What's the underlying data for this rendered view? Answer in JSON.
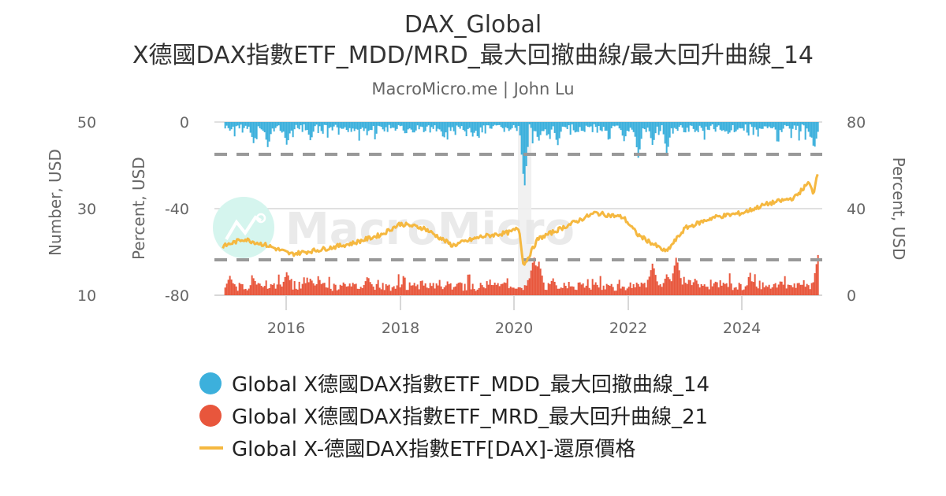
{
  "header": {
    "title_line1": "DAX_Global",
    "title_line2": "X德國DAX指數ETF_MDD/MRD_最大回撤曲線/最大回升曲線_14",
    "subtitle": "MacroMicro.me | John Lu"
  },
  "watermark": {
    "text": "MacroMicro"
  },
  "axes": {
    "left_outer": {
      "title": "Number, USD",
      "ticks": [
        "50",
        "30",
        "10"
      ]
    },
    "left_inner": {
      "title": "Percent, USD",
      "ticks": [
        "0",
        "-40",
        "-80"
      ]
    },
    "right": {
      "title": "Percent, USD",
      "ticks": [
        "80",
        "40",
        "0"
      ]
    },
    "x": {
      "ticks": [
        "2016",
        "2018",
        "2020",
        "2022",
        "2024"
      ]
    }
  },
  "legend": [
    {
      "label": "Global X德國DAX指數ETF_MDD_最大回撤曲線_14",
      "color": "#3cb0dc",
      "marker": "dot"
    },
    {
      "label": "Global X德國DAX指數ETF_MRD_最大回升曲線_21",
      "color": "#e8563c",
      "marker": "dot"
    },
    {
      "label": "Global X-德國DAX指數ETF[DAX]-還原價格",
      "color": "#f5b840",
      "marker": "line"
    }
  ],
  "colors": {
    "mdd": "#3cb0dc",
    "mrd": "#e8563c",
    "price": "#f5b840",
    "dashed": "#999999",
    "grid": "#e0e0e0",
    "shade": "#eeeeee"
  },
  "chart_data": {
    "type": "bar+line",
    "title": "DAX_Global — X德國DAX指數ETF_MDD/MRD_最大回撤曲線/最大回升曲線_14",
    "subtitle": "MacroMicro.me | John Lu",
    "x_range": [
      "2014-11",
      "2025-05"
    ],
    "x_ticks": [
      "2016",
      "2018",
      "2020",
      "2022",
      "2024"
    ],
    "y_axes": [
      {
        "id": "number",
        "label": "Number, USD",
        "range": [
          10,
          50
        ],
        "ticks": [
          50,
          30,
          10
        ],
        "position": "left-outer"
      },
      {
        "id": "pct_left",
        "label": "Percent, USD",
        "range": [
          -80,
          0
        ],
        "ticks": [
          0,
          -40,
          -80
        ],
        "position": "left-inner"
      },
      {
        "id": "pct_right",
        "label": "Percent, USD",
        "range": [
          0,
          80
        ],
        "ticks": [
          80,
          40,
          0
        ],
        "position": "right"
      }
    ],
    "reference_lines": [
      {
        "axis": "pct_left",
        "value": -15,
        "style": "dashed"
      },
      {
        "axis": "pct_right",
        "value": 16.5,
        "style": "dashed"
      }
    ],
    "shaded_regions": [
      {
        "from": "2020-02",
        "to": "2020-04"
      }
    ],
    "grid": true,
    "legend_position": "bottom",
    "series": [
      {
        "name": "Global X德國DAX指數ETF_MDD_最大回撤曲線_14",
        "type": "bar (downward from 0)",
        "axis": "pct_left",
        "x": [
          "2015-01",
          "2015-06",
          "2015-09",
          "2016-01",
          "2016-06",
          "2017-01",
          "2017-06",
          "2018-02",
          "2018-10",
          "2019-05",
          "2019-08",
          "2020-03",
          "2020-06",
          "2020-10",
          "2021-03",
          "2021-09",
          "2021-12",
          "2022-03",
          "2022-06",
          "2022-09",
          "2023-03",
          "2023-10",
          "2024-04",
          "2024-08",
          "2025-04"
        ],
        "values": [
          -4,
          -10,
          -12,
          -11,
          -9,
          -3,
          -5,
          -6,
          -8,
          -3,
          -3,
          -31,
          -9,
          -11,
          -3,
          -4,
          -9,
          -17,
          -11,
          -15,
          -5,
          -6,
          -4,
          -4,
          -13
        ]
      },
      {
        "name": "Global X德國DAX指數ETF_MRD_最大回升曲線_21",
        "type": "bar (upward from 0)",
        "axis": "pct_right",
        "x": [
          "2015-01",
          "2015-06",
          "2016-01",
          "2016-06",
          "2017-01",
          "2017-06",
          "2018-01",
          "2018-06",
          "2019-01",
          "2019-06",
          "2019-12",
          "2020-05",
          "2020-06",
          "2020-09",
          "2021-03",
          "2021-06",
          "2022-01",
          "2022-06",
          "2022-09",
          "2022-11",
          "2023-03",
          "2023-09",
          "2024-03",
          "2024-09",
          "2025-05"
        ],
        "values": [
          9,
          8,
          11,
          8,
          6,
          9,
          4,
          5,
          6,
          5,
          3,
          18,
          16,
          8,
          5,
          6,
          4,
          15,
          10,
          18,
          8,
          6,
          7,
          7,
          21
        ]
      },
      {
        "name": "Global X-德國DAX指數ETF[DAX]-還原價格",
        "type": "line",
        "axis": "number",
        "x": [
          "2014-11",
          "2015-04",
          "2015-09",
          "2016-02",
          "2016-08",
          "2017-03",
          "2017-09",
          "2018-01",
          "2018-06",
          "2018-12",
          "2019-06",
          "2019-12",
          "2020-02",
          "2020-03",
          "2020-06",
          "2020-12",
          "2021-06",
          "2021-12",
          "2022-03",
          "2022-09",
          "2023-01",
          "2023-07",
          "2024-01",
          "2024-06",
          "2024-12",
          "2025-03",
          "2025-04",
          "2025-05"
        ],
        "values": [
          21.0,
          23.0,
          21.5,
          19.5,
          20.5,
          22.0,
          24.0,
          26.5,
          25.5,
          21.5,
          23.5,
          24.5,
          25.5,
          16.8,
          23.0,
          26.0,
          29.0,
          28.0,
          24.0,
          20.0,
          25.5,
          28.0,
          29.0,
          31.0,
          32.5,
          36.0,
          33.5,
          39.0
        ]
      }
    ]
  }
}
